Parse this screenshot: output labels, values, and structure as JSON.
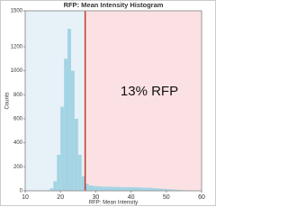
{
  "chart_data": {
    "type": "histogram",
    "title": "RFP: Mean Intensity Histogram",
    "x_label": "RFP: Mean Intensity",
    "y_label": "Counts",
    "annotation": "13% RFP",
    "bins": [
      10,
      11,
      12,
      13,
      14,
      15,
      16,
      17,
      18,
      19,
      20,
      21,
      22,
      23,
      24,
      25,
      26,
      27,
      28,
      29,
      30,
      31,
      32,
      33,
      34,
      35,
      36,
      37,
      38,
      39,
      40,
      41,
      42,
      43,
      44,
      45,
      46,
      47,
      48,
      49,
      50,
      51,
      52,
      53,
      54,
      55,
      56,
      57,
      58,
      59,
      60
    ],
    "counts": [
      0,
      0,
      0,
      0,
      0,
      0,
      5,
      20,
      80,
      300,
      700,
      1100,
      1350,
      1000,
      600,
      300,
      120,
      60,
      45,
      40,
      38,
      36,
      35,
      34,
      33,
      32,
      32,
      31,
      30,
      30,
      30,
      29,
      28,
      27,
      26,
      25,
      22,
      20,
      18,
      16,
      14,
      12,
      10,
      8,
      6,
      5,
      4,
      3,
      2,
      1
    ],
    "color": "#a4d4e4",
    "threshold": 27,
    "threshold_color": "#c0392b",
    "left_region_color": "#e6f1f8",
    "right_region_color": "#fbe1e3",
    "xlim": [
      10,
      60
    ],
    "xticks": [
      10,
      20,
      30,
      40,
      50,
      60
    ],
    "ylim": [
      0,
      1500
    ],
    "yticks": [
      0,
      200,
      400,
      600,
      800,
      1000,
      1200,
      1500
    ]
  }
}
